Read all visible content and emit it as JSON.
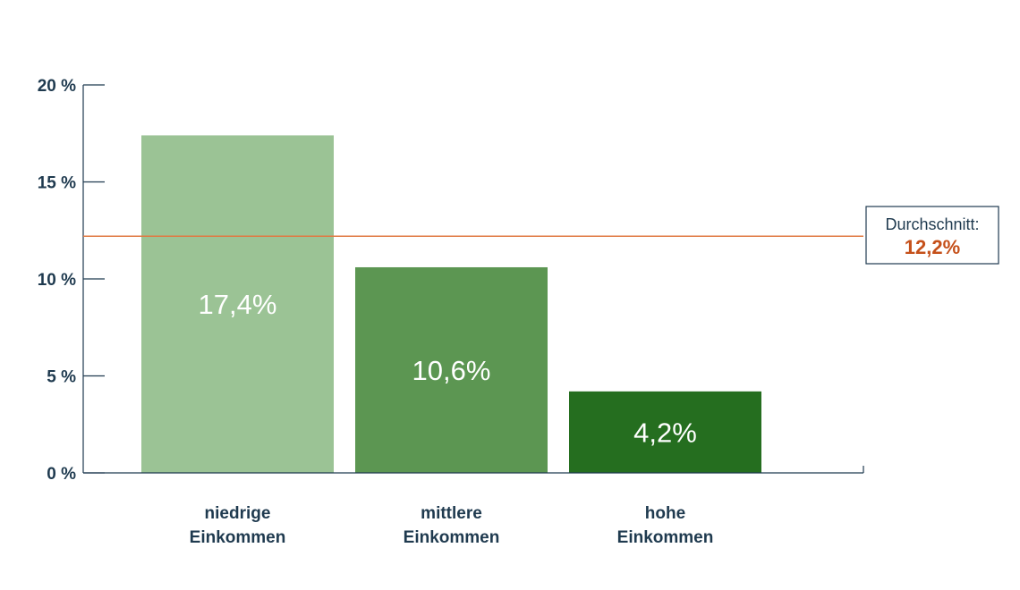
{
  "chart_data": {
    "type": "bar",
    "categories": [
      [
        "niedrige",
        "Einkommen"
      ],
      [
        "mittlere",
        "Einkommen"
      ],
      [
        "hohe",
        "Einkommen"
      ]
    ],
    "values": [
      17.4,
      10.6,
      4.2
    ],
    "value_labels": [
      "17,4%",
      "10,6%",
      "4,2%"
    ],
    "bar_colors": [
      "#9bc395",
      "#5c9652",
      "#256e1f"
    ],
    "ylim": [
      0,
      20
    ],
    "yticks": [
      0,
      5,
      10,
      15,
      20
    ],
    "ytick_labels": [
      "0 %",
      "5 %",
      "10 %",
      "15 %",
      "20 %"
    ],
    "reference_line": {
      "value": 12.2,
      "label": "Durchschnitt:",
      "value_label": "12,2%",
      "color": "#e07a43"
    },
    "axis_color": "#1f3a4f",
    "grid": false,
    "title": "",
    "xlabel": "",
    "ylabel": ""
  }
}
